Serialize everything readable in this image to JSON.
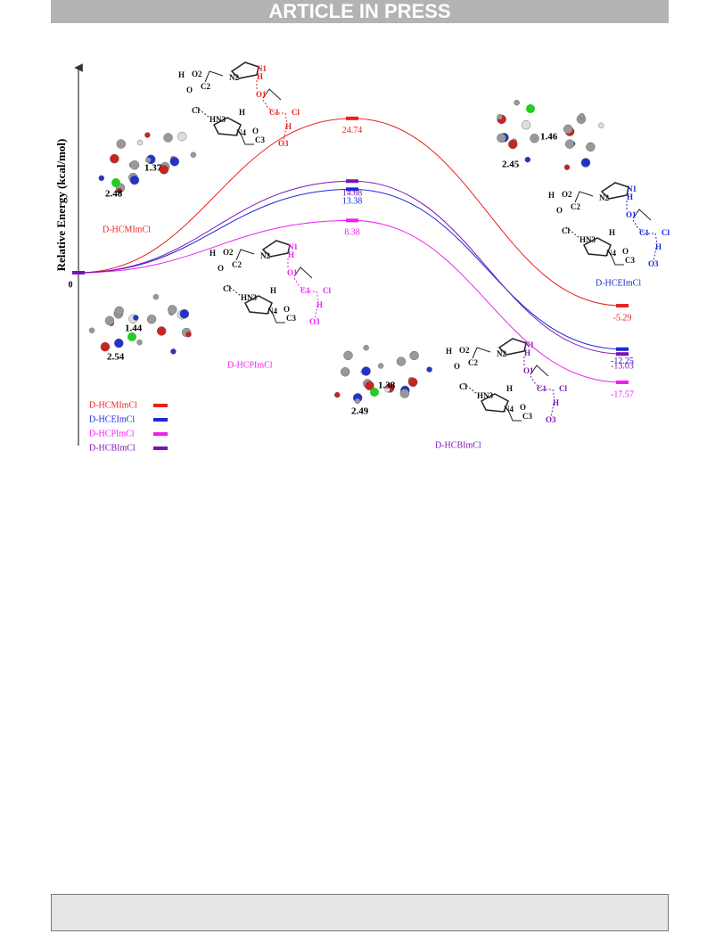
{
  "header": {
    "banner": "ARTICLE IN PRESS"
  },
  "chart_data": {
    "type": "line",
    "y_label": "Relative Energy (kcal/mol)",
    "categories": [
      null,
      null,
      null
    ],
    "ylim": [
      -27,
      33
    ],
    "yticks": [
      0
    ],
    "series": [
      {
        "name": "D-HCMImCl",
        "color": "#e8221e",
        "values": [
          0,
          24.74,
          -5.29
        ]
      },
      {
        "name": "D-HCEImCl",
        "color": "#1b27d6",
        "values": [
          0,
          13.38,
          -12.25
        ]
      },
      {
        "name": "D-HCPImCl",
        "color": "#f01ef0",
        "values": [
          0,
          8.38,
          -17.57
        ]
      },
      {
        "name": "D-HCBImCl",
        "color": "#7a14b4",
        "values": [
          0,
          14.68,
          -13.03
        ]
      }
    ],
    "distances": [
      "1.37",
      "2.48",
      "1.46",
      "2.45",
      "1.44",
      "2.54",
      "1.38",
      "2.49"
    ],
    "schematics": [
      {
        "labels": [
          "H",
          "O2",
          "C2",
          "O",
          "N2",
          "N1",
          "H",
          "O1",
          "C1",
          "Cl",
          "H",
          "O3",
          "C3",
          "O",
          "N4",
          "HN3",
          "H",
          "Cl"
        ]
      },
      {
        "labels": [
          "H",
          "O2",
          "C2",
          "O",
          "N2",
          "N1",
          "H",
          "O1",
          "C1",
          "Cl",
          "H",
          "O3",
          "C3",
          "O",
          "N4",
          "HN3",
          "H",
          "Cl"
        ]
      },
      {
        "labels": [
          "H",
          "O2",
          "C2",
          "O",
          "N2",
          "N1",
          "H",
          "O1",
          "C1",
          "Cl",
          "H",
          "O3",
          "C3",
          "O",
          "N4",
          "HN3",
          "H",
          "Cl"
        ]
      },
      {
        "labels": [
          "H",
          "O2",
          "C2",
          "O",
          "N2",
          "N1",
          "H",
          "O1",
          "C1",
          "Cl",
          "H",
          "O3",
          "C3",
          "O",
          "N4",
          "HN3",
          "H",
          "Cl"
        ]
      }
    ]
  }
}
